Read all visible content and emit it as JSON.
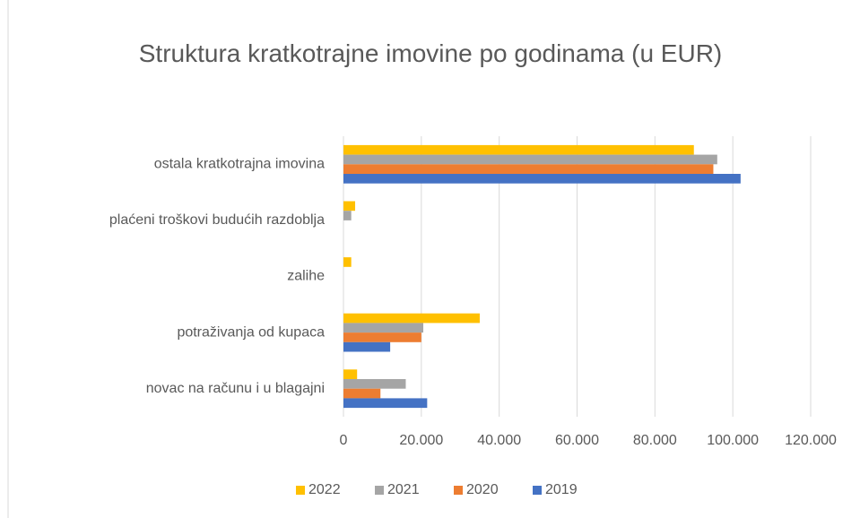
{
  "chart_data": {
    "type": "hbar",
    "title": "Struktura kratkotrajne imovine po godinama (u EUR)",
    "categories": [
      "ostala kratkotrajna imovina",
      "plaćeni troškovi budućih razdoblja",
      "zalihe",
      "potraživanja od kupaca",
      "novac na računu i u blagajni"
    ],
    "series": [
      {
        "name": "2022",
        "color": "#ffc000",
        "values": [
          90000,
          3000,
          2000,
          35000,
          3500
        ]
      },
      {
        "name": "2021",
        "color": "#a5a5a5",
        "values": [
          96000,
          2000,
          0,
          20500,
          16000
        ]
      },
      {
        "name": "2020",
        "color": "#ed7d31",
        "values": [
          95000,
          0,
          0,
          20000,
          9500
        ]
      },
      {
        "name": "2019",
        "color": "#4472c4",
        "values": [
          102000,
          0,
          0,
          12000,
          21500
        ]
      }
    ],
    "xlim": [
      0,
      120000
    ],
    "xticks": [
      0,
      {
        "value": 20000,
        "label": "20.000"
      },
      {
        "value": 40000,
        "label": "40.000"
      },
      {
        "value": 60000,
        "label": "60.000"
      },
      {
        "value": 80000,
        "label": "80.000"
      },
      {
        "value": 100000,
        "label": "100.000"
      },
      {
        "value": 120000,
        "label": "120.000"
      }
    ],
    "grid": true,
    "legend": "bottom"
  }
}
